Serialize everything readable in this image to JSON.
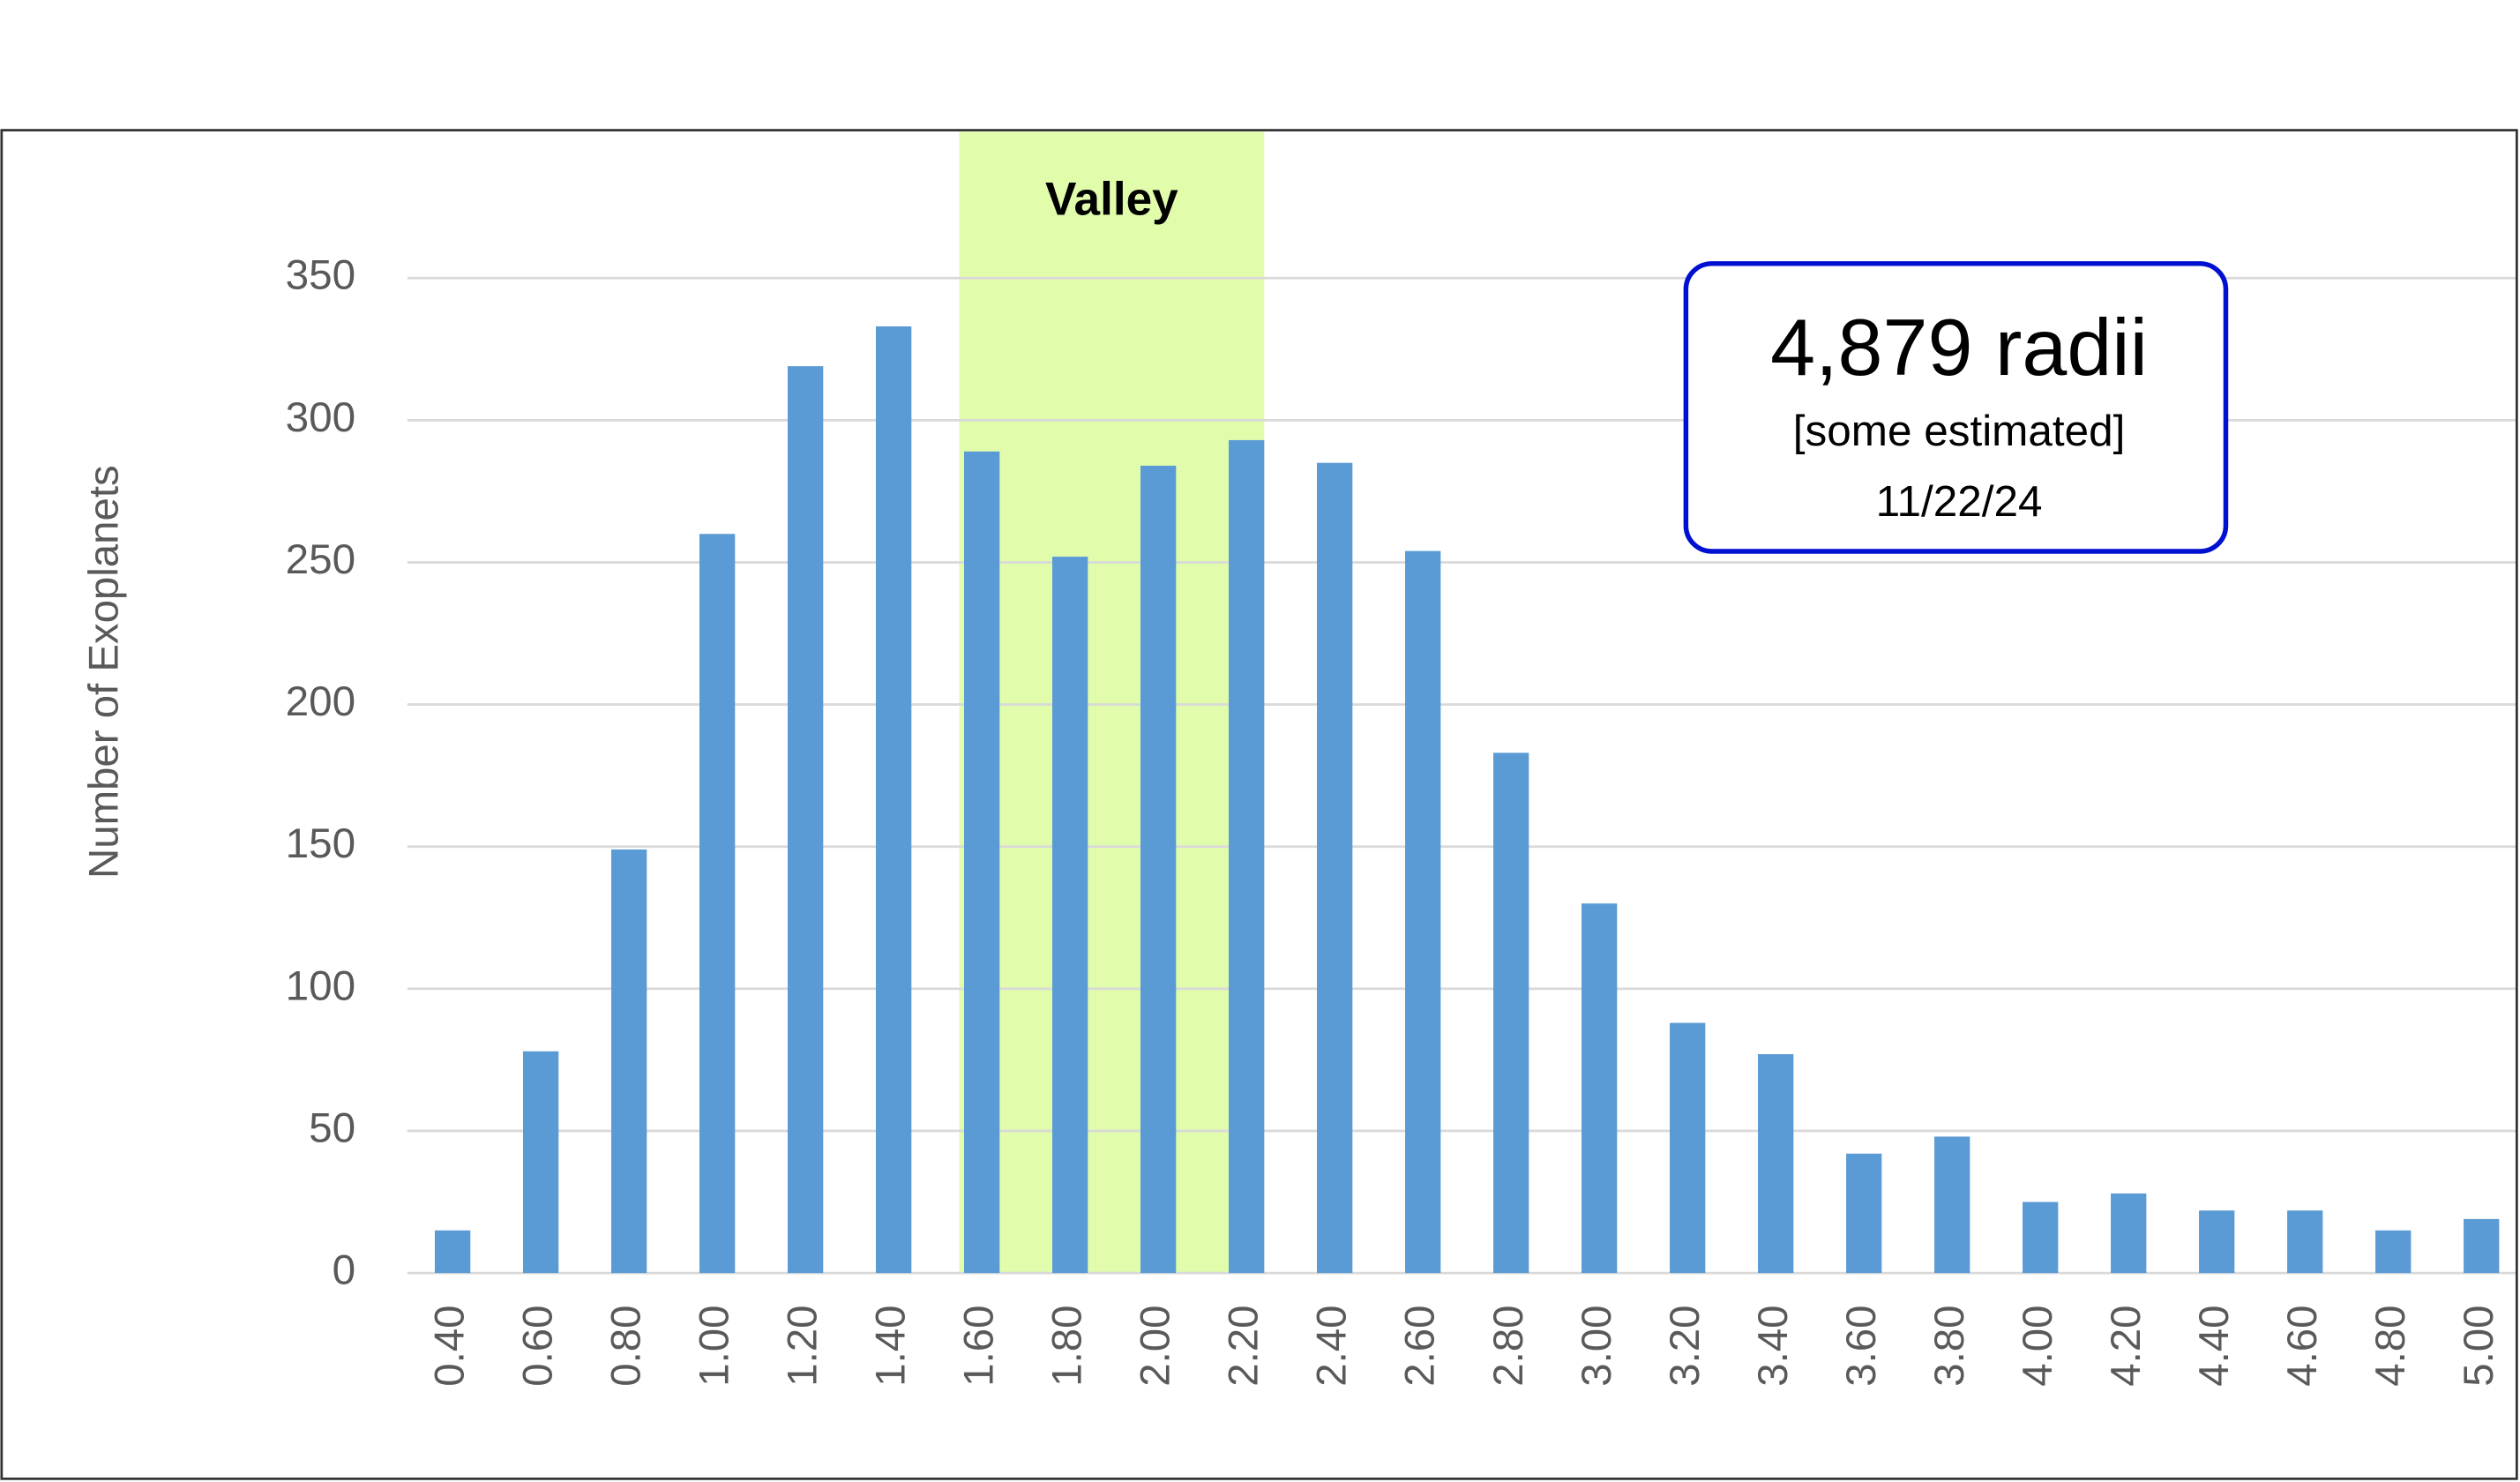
{
  "chart_data": {
    "type": "bar",
    "y_label": "Number of Exoplanets",
    "categories": [
      "0.40",
      "0.60",
      "0.80",
      "1.00",
      "1.20",
      "1.40",
      "1.60",
      "1.80",
      "2.00",
      "2.20",
      "2.40",
      "2.60",
      "2.80",
      "3.00",
      "3.20",
      "3.40",
      "3.60",
      "3.80",
      "4.00",
      "4.20",
      "4.40",
      "4.60",
      "4.80",
      "5.00"
    ],
    "values": [
      15,
      78,
      149,
      260,
      319,
      333,
      289,
      252,
      284,
      293,
      285,
      254,
      183,
      130,
      88,
      77,
      42,
      48,
      25,
      28,
      22,
      22,
      15,
      19
    ],
    "color": "#5b9bd5",
    "ylim": [
      0,
      350
    ],
    "yticks": [
      0,
      50,
      100,
      150,
      200,
      250,
      300,
      350
    ],
    "grid": true,
    "band_label": "Valley",
    "note": {
      "title": "4,879 radii",
      "subtitle": "[some estimated]",
      "date": "11/22/24"
    }
  }
}
